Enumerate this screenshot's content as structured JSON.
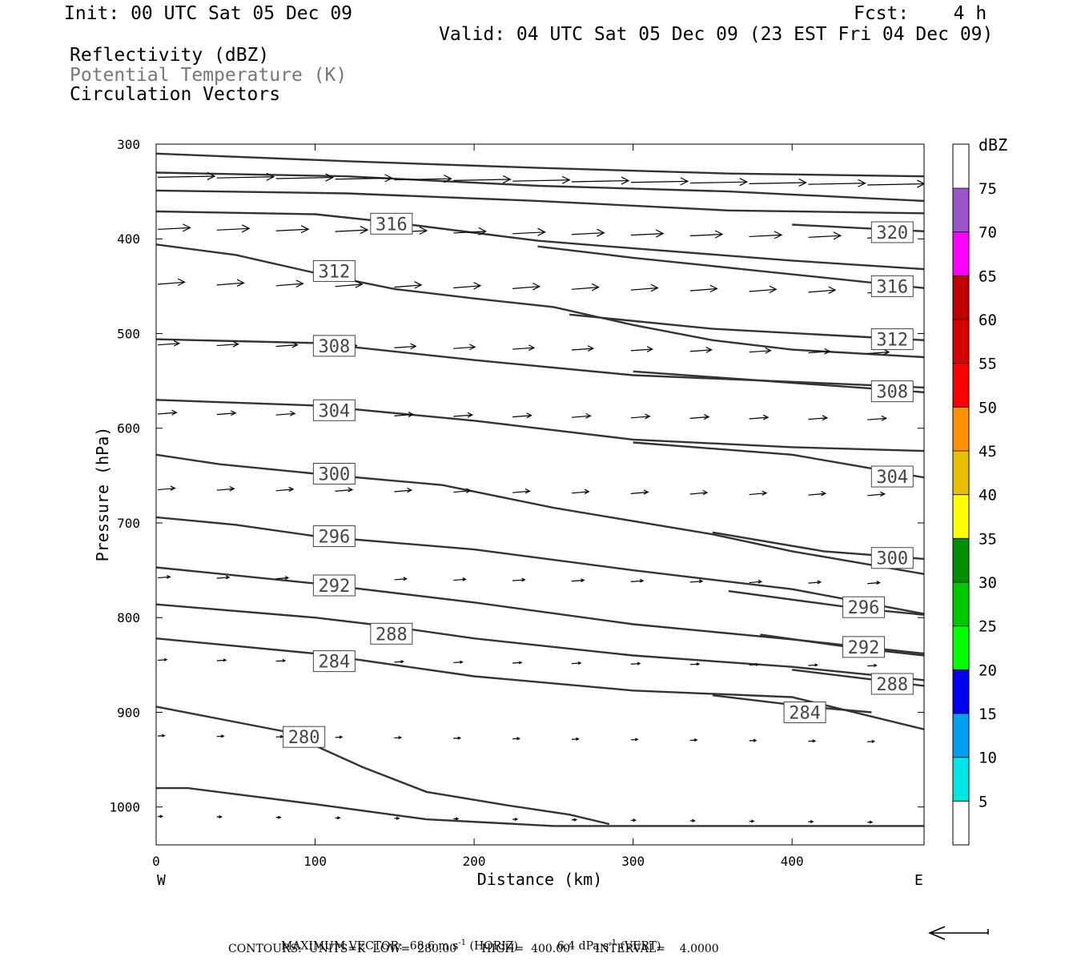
{
  "header": {
    "init": "Init: 00 UTC Sat 05 Dec 09",
    "fcst": "Fcst:    4 h",
    "valid": "Valid: 04 UTC Sat 05 Dec 09 (23 EST Fri 04 Dec 09)",
    "field1": "Reflectivity (dBZ)",
    "field2": "Potential Temperature (K)",
    "field3": "Circulation Vectors"
  },
  "footer": {
    "max_vector_label": "MAXIMUM VECTOR:",
    "max_vector_horiz": "68.6 m s",
    "horiz_tag": "(HORIZ)",
    "max_vector_vert": "6.4 dPa s",
    "vert_tag": "(VERT)",
    "exp": "-1",
    "contours": "CONTOURS:  UNITS=K  LOW=  280.00       HIGH=  400.00       INTERVAL=    4.0000"
  },
  "chart_data": {
    "type": "cross-section contour",
    "xlabel": "Distance (km)",
    "ylabel": "Pressure (hPa)",
    "xlim": [
      0,
      483
    ],
    "ylim": [
      1040,
      300
    ],
    "x_ticks": [
      0,
      100,
      200,
      300,
      400
    ],
    "x_tick_labels": [
      "0",
      "100",
      "200",
      "300",
      "400"
    ],
    "y_ticks": [
      300,
      400,
      500,
      600,
      700,
      800,
      900,
      1000
    ],
    "y_tick_labels": [
      "300",
      "400",
      "500",
      "600",
      "700",
      "800",
      "900",
      "1000"
    ],
    "west_label": "W",
    "east_label": "E",
    "contour_line_color": "#333333",
    "contours": [
      {
        "label": "",
        "points": [
          [
            0,
            310
          ],
          [
            120,
            318
          ],
          [
            240,
            325
          ],
          [
            360,
            331
          ],
          [
            483,
            334
          ]
        ],
        "label_at": []
      },
      {
        "label": "",
        "points": [
          [
            0,
            330
          ],
          [
            120,
            334
          ],
          [
            240,
            344
          ],
          [
            360,
            350
          ],
          [
            483,
            360
          ]
        ],
        "label_at": []
      },
      {
        "label": "",
        "points": [
          [
            0,
            349
          ],
          [
            120,
            352
          ],
          [
            240,
            360
          ],
          [
            360,
            370
          ],
          [
            483,
            373
          ]
        ],
        "label_at": []
      },
      {
        "label": "316",
        "points": [
          [
            0,
            371
          ],
          [
            100,
            374
          ],
          [
            150,
            383
          ],
          [
            240,
            402
          ],
          [
            300,
            410
          ],
          [
            400,
            423
          ],
          [
            483,
            432
          ]
        ],
        "label_at": [
          [
            148,
            384
          ]
        ]
      },
      {
        "label": "320",
        "points": [
          [
            400,
            385
          ],
          [
            483,
            392
          ]
        ],
        "label_at": [
          [
            463,
            393
          ]
        ]
      },
      {
        "label": "312",
        "points": [
          [
            0,
            406
          ],
          [
            50,
            417
          ],
          [
            100,
            436
          ],
          [
            150,
            453
          ],
          [
            200,
            463
          ],
          [
            250,
            472
          ],
          [
            300,
            491
          ],
          [
            350,
            507
          ],
          [
            400,
            517
          ],
          [
            483,
            525
          ]
        ],
        "label_at": [
          [
            112,
            434
          ]
        ]
      },
      {
        "label": "316",
        "points": [
          [
            240,
            408
          ],
          [
            300,
            420
          ],
          [
            380,
            434
          ],
          [
            483,
            452
          ]
        ],
        "label_at": [
          [
            463,
            450
          ]
        ]
      },
      {
        "label": "308",
        "points": [
          [
            0,
            506
          ],
          [
            100,
            510
          ],
          [
            200,
            528
          ],
          [
            300,
            544
          ],
          [
            400,
            551
          ],
          [
            483,
            557
          ]
        ],
        "label_at": [
          [
            112,
            513
          ]
        ]
      },
      {
        "label": "312",
        "points": [
          [
            260,
            480
          ],
          [
            350,
            495
          ],
          [
            483,
            507
          ]
        ],
        "label_at": [
          [
            463,
            506
          ]
        ]
      },
      {
        "label": "304",
        "points": [
          [
            0,
            570
          ],
          [
            100,
            576
          ],
          [
            200,
            592
          ],
          [
            300,
            612
          ],
          [
            400,
            620
          ],
          [
            483,
            624
          ]
        ],
        "label_at": [
          [
            112,
            581
          ]
        ]
      },
      {
        "label": "308",
        "points": [
          [
            300,
            540
          ],
          [
            400,
            552
          ],
          [
            483,
            562
          ]
        ],
        "label_at": [
          [
            463,
            561
          ]
        ]
      },
      {
        "label": "300",
        "points": [
          [
            0,
            628
          ],
          [
            40,
            638
          ],
          [
            100,
            648
          ],
          [
            180,
            660
          ],
          [
            250,
            684
          ],
          [
            350,
            712
          ],
          [
            400,
            730
          ],
          [
            483,
            754
          ]
        ],
        "label_at": [
          [
            112,
            648
          ]
        ]
      },
      {
        "label": "304",
        "points": [
          [
            300,
            615
          ],
          [
            400,
            628
          ],
          [
            483,
            652
          ]
        ],
        "label_at": [
          [
            463,
            651
          ]
        ]
      },
      {
        "label": "296",
        "points": [
          [
            0,
            694
          ],
          [
            50,
            702
          ],
          [
            100,
            714
          ],
          [
            200,
            728
          ],
          [
            300,
            750
          ],
          [
            400,
            770
          ],
          [
            483,
            796
          ]
        ],
        "label_at": [
          [
            112,
            714
          ]
        ]
      },
      {
        "label": "300",
        "points": [
          [
            350,
            710
          ],
          [
            420,
            730
          ],
          [
            483,
            738
          ]
        ],
        "label_at": [
          [
            463,
            737
          ]
        ]
      },
      {
        "label": "292",
        "points": [
          [
            0,
            747
          ],
          [
            100,
            764
          ],
          [
            200,
            784
          ],
          [
            300,
            807
          ],
          [
            400,
            823
          ],
          [
            483,
            838
          ]
        ],
        "label_at": [
          [
            112,
            766
          ]
        ]
      },
      {
        "label": "296",
        "points": [
          [
            360,
            772
          ],
          [
            440,
            790
          ],
          [
            483,
            797
          ]
        ],
        "label_at": [
          [
            445,
            789
          ]
        ]
      },
      {
        "label": "288",
        "points": [
          [
            0,
            786
          ],
          [
            100,
            800
          ],
          [
            150,
            810
          ],
          [
            200,
            822
          ],
          [
            300,
            840
          ],
          [
            400,
            852
          ],
          [
            483,
            866
          ]
        ],
        "label_at": [
          [
            148,
            817
          ]
        ]
      },
      {
        "label": "292",
        "points": [
          [
            380,
            818
          ],
          [
            440,
            832
          ],
          [
            483,
            840
          ]
        ],
        "label_at": [
          [
            445,
            831
          ]
        ]
      },
      {
        "label": "284",
        "points": [
          [
            0,
            822
          ],
          [
            100,
            838
          ],
          [
            200,
            862
          ],
          [
            300,
            877
          ],
          [
            400,
            884
          ],
          [
            483,
            918
          ]
        ],
        "label_at": [
          [
            112,
            846
          ]
        ]
      },
      {
        "label": "288",
        "points": [
          [
            400,
            855
          ],
          [
            483,
            872
          ]
        ],
        "label_at": [
          [
            463,
            870
          ]
        ]
      },
      {
        "label": "284",
        "points": [
          [
            350,
            882
          ],
          [
            410,
            894
          ],
          [
            450,
            900
          ]
        ],
        "label_at": [
          [
            408,
            900
          ]
        ]
      },
      {
        "label": "280",
        "points": [
          [
            0,
            894
          ],
          [
            80,
            920
          ],
          [
            130,
            958
          ],
          [
            170,
            984
          ],
          [
            220,
            998
          ],
          [
            260,
            1008
          ],
          [
            285,
            1018
          ]
        ],
        "label_at": [
          [
            93,
            926
          ]
        ]
      },
      {
        "label": "",
        "points": [
          [
            0,
            980
          ],
          [
            20,
            980
          ],
          [
            100,
            997
          ],
          [
            170,
            1013
          ],
          [
            250,
            1020
          ],
          [
            483,
            1020
          ]
        ],
        "label_at": []
      }
    ],
    "vectors_note": "Circulation vectors (horizontal + vertical component)",
    "vector_rows": [
      {
        "p": 335,
        "u": 1.0,
        "w": 0.02
      },
      {
        "p": 390,
        "u": 0.55,
        "w": 0.05
      },
      {
        "p": 448,
        "u": 0.45,
        "w": 0.08
      },
      {
        "p": 512,
        "u": 0.35,
        "w": 0.07
      },
      {
        "p": 585,
        "u": 0.3,
        "w": 0.08
      },
      {
        "p": 665,
        "u": 0.27,
        "w": 0.09
      },
      {
        "p": 758,
        "u": 0.18,
        "w": 0.08
      },
      {
        "p": 845,
        "u": 0.12,
        "w": 0.06
      },
      {
        "p": 925,
        "u": 0.08,
        "w": 0.05
      },
      {
        "p": 1010,
        "u": 0.04,
        "w": 0.02
      }
    ],
    "reference_vector_label": "",
    "colorbar": {
      "title": "dBZ",
      "levels": [
        "5",
        "10",
        "15",
        "20",
        "25",
        "30",
        "35",
        "40",
        "45",
        "50",
        "55",
        "60",
        "65",
        "70",
        "75"
      ],
      "colors": [
        "#ffffff",
        "#00e5e5",
        "#00a0f0",
        "#0000f0",
        "#00ff00",
        "#00c800",
        "#009000",
        "#ffff00",
        "#e7c000",
        "#ff9000",
        "#ff0000",
        "#d70000",
        "#c00000",
        "#ff00ff",
        "#9955c9",
        "#ffffff"
      ]
    }
  }
}
